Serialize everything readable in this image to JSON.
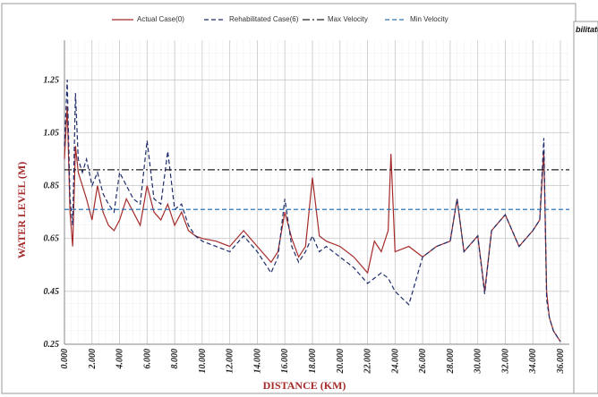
{
  "chart_data": {
    "type": "line",
    "x_label": "DISTANCE (KM)",
    "y_label": "WATER LEVEL (M)",
    "x": [
      0,
      200,
      400,
      600,
      800,
      1000,
      1300,
      1600,
      2000,
      2400,
      2800,
      3200,
      3600,
      4000,
      4500,
      5000,
      5500,
      6000,
      6500,
      7000,
      7500,
      8000,
      8500,
      9000,
      9500,
      10000,
      11000,
      12000,
      13000,
      14000,
      15000,
      15500,
      16000,
      16500,
      17000,
      17500,
      18000,
      18500,
      19000,
      20000,
      21000,
      22000,
      22500,
      23000,
      23500,
      23700,
      24000,
      25000,
      26000,
      27000,
      28000,
      28500,
      29000,
      30000,
      30500,
      31000,
      32000,
      33000,
      34000,
      34500,
      34800,
      35000,
      35200,
      35500,
      36000
    ],
    "series": [
      {
        "name": "Actual Case(0)",
        "color": "#a52a2a",
        "dash": "solid",
        "values": [
          0.95,
          1.15,
          0.75,
          0.62,
          1.0,
          0.9,
          0.85,
          0.8,
          0.72,
          0.85,
          0.75,
          0.7,
          0.68,
          0.72,
          0.8,
          0.75,
          0.7,
          0.85,
          0.75,
          0.72,
          0.78,
          0.7,
          0.75,
          0.68,
          0.66,
          0.65,
          0.64,
          0.62,
          0.68,
          0.62,
          0.56,
          0.6,
          0.75,
          0.65,
          0.58,
          0.62,
          0.88,
          0.66,
          0.64,
          0.62,
          0.58,
          0.52,
          0.64,
          0.6,
          0.68,
          0.97,
          0.6,
          0.62,
          0.58,
          0.62,
          0.64,
          0.8,
          0.6,
          0.66,
          0.45,
          0.68,
          0.74,
          0.62,
          0.68,
          0.72,
          0.98,
          0.45,
          0.35,
          0.3,
          0.26
        ]
      },
      {
        "name": "Rehabilitated Case(6)",
        "color": "#1f2d6b",
        "dash": "dashed",
        "values": [
          1.0,
          1.25,
          0.8,
          0.7,
          1.2,
          0.95,
          0.9,
          0.95,
          0.85,
          0.9,
          0.82,
          0.78,
          0.75,
          0.9,
          0.85,
          0.8,
          0.78,
          1.02,
          0.8,
          0.78,
          0.98,
          0.76,
          0.78,
          0.7,
          0.66,
          0.64,
          0.62,
          0.6,
          0.66,
          0.6,
          0.52,
          0.58,
          0.8,
          0.62,
          0.56,
          0.6,
          0.66,
          0.6,
          0.62,
          0.58,
          0.54,
          0.48,
          0.5,
          0.52,
          0.5,
          0.48,
          0.45,
          0.4,
          0.58,
          0.62,
          0.64,
          0.8,
          0.6,
          0.66,
          0.44,
          0.68,
          0.74,
          0.62,
          0.68,
          0.72,
          1.03,
          0.42,
          0.35,
          0.3,
          0.26
        ]
      }
    ],
    "reference_lines": [
      {
        "name": "Max Velocity",
        "value": 0.91,
        "color": "#222222",
        "dash": "dashdot"
      },
      {
        "name": "Min Velocity",
        "value": 0.76,
        "color": "#2e75b6",
        "dash": "dashed"
      }
    ],
    "xlim": [
      0,
      36650
    ],
    "ylim": [
      0.25,
      1.4
    ],
    "xticks": [
      {
        "value": 0,
        "label": "0.000"
      },
      {
        "value": 2000,
        "label": "2.000"
      },
      {
        "value": 4000,
        "label": "4.000"
      },
      {
        "value": 6000,
        "label": "6.000"
      },
      {
        "value": 8000,
        "label": "8.000"
      },
      {
        "value": 10000,
        "label": "10.000"
      },
      {
        "value": 12000,
        "label": "12.000"
      },
      {
        "value": 14000,
        "label": "14.000"
      },
      {
        "value": 16000,
        "label": "16.000"
      },
      {
        "value": 18000,
        "label": "18.000"
      },
      {
        "value": 20000,
        "label": "20.000"
      },
      {
        "value": 22000,
        "label": "22.000"
      },
      {
        "value": 24000,
        "label": "24.000"
      },
      {
        "value": 26000,
        "label": "26.000"
      },
      {
        "value": 28000,
        "label": "28.000"
      },
      {
        "value": 30000,
        "label": "30.000"
      },
      {
        "value": 32000,
        "label": "32.000"
      },
      {
        "value": 34000,
        "label": "34.000"
      },
      {
        "value": 36000,
        "label": "36.000"
      }
    ],
    "yticks": [
      0.25,
      0.45,
      0.65,
      0.85,
      1.05,
      1.25
    ],
    "grid": true,
    "legend": "top"
  },
  "side_panel": {
    "title_fragment": "bilitate"
  }
}
